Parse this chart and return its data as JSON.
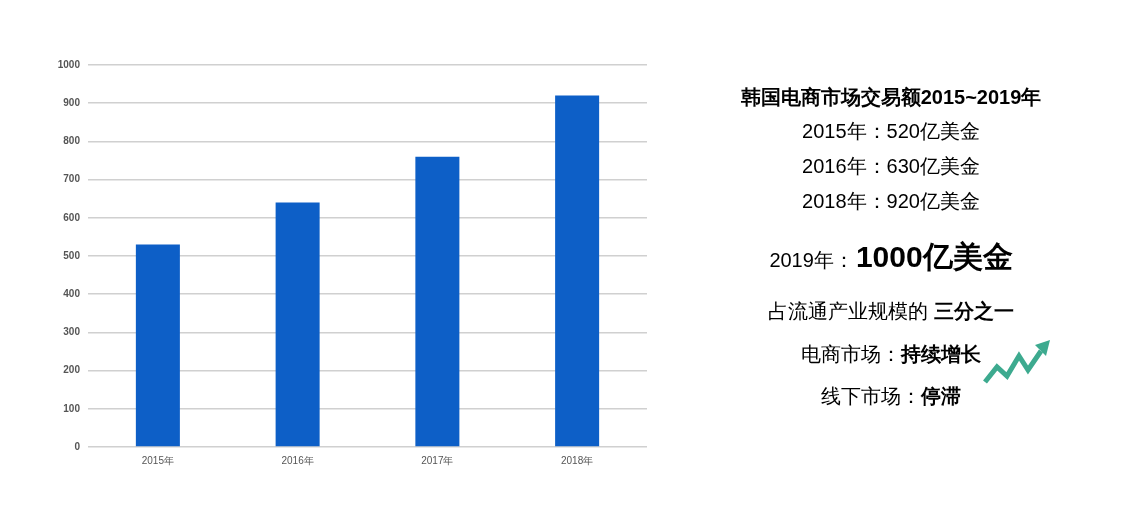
{
  "chart_data": {
    "type": "bar",
    "title": "韩国电商市场交易额2015~2019年",
    "categories": [
      "2015年",
      "2016年",
      "2017年",
      "2018年"
    ],
    "values": [
      530,
      640,
      760,
      920
    ],
    "color": "#0d5fc7",
    "ylim": [
      0,
      1000
    ],
    "yticks": [
      0,
      100,
      200,
      300,
      400,
      500,
      600,
      700,
      800,
      900,
      1000
    ],
    "grid": "y",
    "annotations": [
      "2015年：520亿美金",
      "2016年：630亿美金",
      "2018年：920亿美金",
      "2019年：",
      "1000亿美金",
      "占流通产业规模的",
      "三分之一",
      "电商市场：",
      "持续增长",
      "线下市场：",
      "停滞"
    ]
  }
}
